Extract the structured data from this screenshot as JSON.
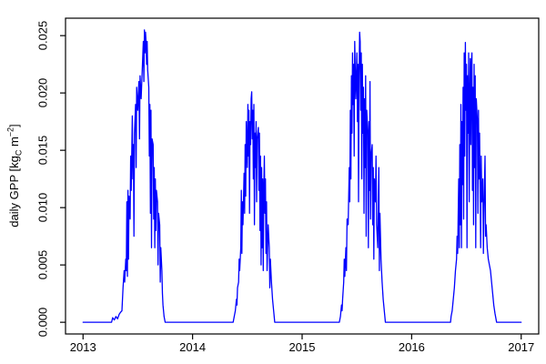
{
  "chart_data": {
    "type": "line",
    "title": "",
    "xlabel": "",
    "ylabel": "daily GPP [kgC m−2]",
    "ylabel_parts": {
      "prefix": "daily GPP [kg",
      "sub": "C",
      "mid": " m",
      "sup": "−2",
      "suffix": "]"
    },
    "x_ticks": [
      "2013",
      "2014",
      "2015",
      "2016",
      "2017"
    ],
    "x_tick_values": [
      2013,
      2014,
      2015,
      2016,
      2017
    ],
    "y_ticks": [
      "0.000",
      "0.005",
      "0.010",
      "0.015",
      "0.020",
      "0.025"
    ],
    "y_tick_values": [
      0.0,
      0.005,
      0.01,
      0.015,
      0.02,
      0.025
    ],
    "xlim": [
      2012.84,
      2017.16
    ],
    "ylim": [
      -0.00102,
      0.02652
    ],
    "grid": false,
    "legend": "none",
    "background": "#ffffff",
    "axis_color": "#000000",
    "line_color": "#0000ff",
    "series": [
      {
        "name": "daily GPP",
        "points": [
          [
            2013.0,
            0
          ],
          [
            2013.26,
            0
          ],
          [
            2013.27,
            0.0004
          ],
          [
            2013.285,
            0.0002
          ],
          [
            2013.3,
            0.0005
          ],
          [
            2013.315,
            0.0003
          ],
          [
            2013.33,
            0.0007
          ],
          [
            2013.345,
            0.0009
          ],
          [
            2013.355,
            0.001
          ],
          [
            2013.365,
            0.003
          ],
          [
            2013.375,
            0.0045
          ],
          [
            2013.38,
            0.0035
          ],
          [
            2013.39,
            0.0055
          ],
          [
            2013.395,
            0.0045
          ],
          [
            2013.4,
            0.0105
          ],
          [
            2013.405,
            0.004
          ],
          [
            2013.41,
            0.0115
          ],
          [
            2013.415,
            0.0055
          ],
          [
            2013.42,
            0.011
          ],
          [
            2013.43,
            0.009
          ],
          [
            2013.435,
            0.0145
          ],
          [
            2013.44,
            0.0115
          ],
          [
            2013.45,
            0.018
          ],
          [
            2013.455,
            0.0125
          ],
          [
            2013.46,
            0.0155
          ],
          [
            2013.465,
            0.0075
          ],
          [
            2013.47,
            0.0165
          ],
          [
            2013.48,
            0.019
          ],
          [
            2013.485,
            0.0135
          ],
          [
            2013.49,
            0.0205
          ],
          [
            2013.5,
            0.0185
          ],
          [
            2013.51,
            0.021
          ],
          [
            2013.515,
            0.016
          ],
          [
            2013.52,
            0.0215
          ],
          [
            2013.53,
            0.0195
          ],
          [
            2013.54,
            0.022
          ],
          [
            2013.55,
            0.0245
          ],
          [
            2013.555,
            0.021
          ],
          [
            2013.56,
            0.0255
          ],
          [
            2013.565,
            0.0235
          ],
          [
            2013.57,
            0.0253
          ],
          [
            2013.575,
            0.0245
          ],
          [
            2013.58,
            0.0225
          ],
          [
            2013.585,
            0.0245
          ],
          [
            2013.59,
            0.022
          ],
          [
            2013.6,
            0.0205
          ],
          [
            2013.605,
            0.0145
          ],
          [
            2013.61,
            0.019
          ],
          [
            2013.615,
            0.0095
          ],
          [
            2013.62,
            0.0185
          ],
          [
            2013.625,
            0.0065
          ],
          [
            2013.63,
            0.016
          ],
          [
            2013.64,
            0.0155
          ],
          [
            2013.645,
            0.009
          ],
          [
            2013.65,
            0.0135
          ],
          [
            2013.655,
            0.0065
          ],
          [
            2013.66,
            0.0125
          ],
          [
            2013.665,
            0.008
          ],
          [
            2013.67,
            0.0115
          ],
          [
            2013.68,
            0.0105
          ],
          [
            2013.685,
            0.005
          ],
          [
            2013.69,
            0.0095
          ],
          [
            2013.7,
            0.0085
          ],
          [
            2013.705,
            0.0035
          ],
          [
            2013.71,
            0.0065
          ],
          [
            2013.72,
            0.0045
          ],
          [
            2013.725,
            0.0025
          ],
          [
            2013.73,
            0.0015
          ],
          [
            2013.74,
            0.0005
          ],
          [
            2013.75,
            0
          ],
          [
            2014.37,
            0
          ],
          [
            2014.38,
            0.0005
          ],
          [
            2014.39,
            0.001
          ],
          [
            2014.4,
            0.002
          ],
          [
            2014.405,
            0.0015
          ],
          [
            2014.41,
            0.003
          ],
          [
            2014.42,
            0.0035
          ],
          [
            2014.425,
            0.0055
          ],
          [
            2014.43,
            0.0045
          ],
          [
            2014.44,
            0.0065
          ],
          [
            2014.445,
            0.0115
          ],
          [
            2014.45,
            0.006
          ],
          [
            2014.455,
            0.0105
          ],
          [
            2014.46,
            0.0085
          ],
          [
            2014.47,
            0.013
          ],
          [
            2014.475,
            0.0095
          ],
          [
            2014.48,
            0.0155
          ],
          [
            2014.485,
            0.011
          ],
          [
            2014.49,
            0.0175
          ],
          [
            2014.5,
            0.0135
          ],
          [
            2014.505,
            0.019
          ],
          [
            2014.51,
            0.0145
          ],
          [
            2014.515,
            0.0185
          ],
          [
            2014.52,
            0.0095
          ],
          [
            2014.525,
            0.0175
          ],
          [
            2014.53,
            0.0155
          ],
          [
            2014.535,
            0.0195
          ],
          [
            2014.54,
            0.0201
          ],
          [
            2014.545,
            0.016
          ],
          [
            2014.55,
            0.0185
          ],
          [
            2014.555,
            0.0125
          ],
          [
            2014.56,
            0.019
          ],
          [
            2014.565,
            0.0085
          ],
          [
            2014.57,
            0.0165
          ],
          [
            2014.575,
            0.0135
          ],
          [
            2014.58,
            0.0175
          ],
          [
            2014.585,
            0.0105
          ],
          [
            2014.59,
            0.016
          ],
          [
            2014.6,
            0.017
          ],
          [
            2014.605,
            0.0115
          ],
          [
            2014.61,
            0.0165
          ],
          [
            2014.615,
            0.008
          ],
          [
            2014.62,
            0.0145
          ],
          [
            2014.625,
            0.005
          ],
          [
            2014.63,
            0.0135
          ],
          [
            2014.635,
            0.0065
          ],
          [
            2014.64,
            0.0125
          ],
          [
            2014.645,
            0.0045
          ],
          [
            2014.65,
            0.0115
          ],
          [
            2014.655,
            0.0145
          ],
          [
            2014.66,
            0.0095
          ],
          [
            2014.665,
            0.0125
          ],
          [
            2014.67,
            0.006
          ],
          [
            2014.675,
            0.0105
          ],
          [
            2014.68,
            0.0045
          ],
          [
            2014.69,
            0.0085
          ],
          [
            2014.7,
            0.0065
          ],
          [
            2014.705,
            0.003
          ],
          [
            2014.71,
            0.0055
          ],
          [
            2014.72,
            0.0035
          ],
          [
            2014.73,
            0.002
          ],
          [
            2014.74,
            0.001
          ],
          [
            2014.75,
            0
          ],
          [
            2015.34,
            0
          ],
          [
            2015.35,
            0.0005
          ],
          [
            2015.36,
            0.0015
          ],
          [
            2015.365,
            0.001
          ],
          [
            2015.37,
            0.002
          ],
          [
            2015.38,
            0.0035
          ],
          [
            2015.385,
            0.0055
          ],
          [
            2015.39,
            0.004
          ],
          [
            2015.4,
            0.0065
          ],
          [
            2015.405,
            0.0045
          ],
          [
            2015.41,
            0.009
          ],
          [
            2015.42,
            0.0085
          ],
          [
            2015.43,
            0.0135
          ],
          [
            2015.435,
            0.0105
          ],
          [
            2015.44,
            0.0185
          ],
          [
            2015.445,
            0.0125
          ],
          [
            2015.45,
            0.0215
          ],
          [
            2015.455,
            0.0165
          ],
          [
            2015.46,
            0.0235
          ],
          [
            2015.465,
            0.019
          ],
          [
            2015.47,
            0.0225
          ],
          [
            2015.475,
            0.0145
          ],
          [
            2015.48,
            0.0245
          ],
          [
            2015.49,
            0.0195
          ],
          [
            2015.5,
            0.0235
          ],
          [
            2015.505,
            0.0175
          ],
          [
            2015.51,
            0.0225
          ],
          [
            2015.515,
            0.0105
          ],
          [
            2015.52,
            0.0215
          ],
          [
            2015.525,
            0.0253
          ],
          [
            2015.53,
            0.0245
          ],
          [
            2015.535,
            0.0185
          ],
          [
            2015.54,
            0.0235
          ],
          [
            2015.545,
            0.0125
          ],
          [
            2015.55,
            0.0225
          ],
          [
            2015.555,
            0.0165
          ],
          [
            2015.56,
            0.0205
          ],
          [
            2015.565,
            0.0095
          ],
          [
            2015.57,
            0.0195
          ],
          [
            2015.575,
            0.0135
          ],
          [
            2015.58,
            0.0215
          ],
          [
            2015.585,
            0.0075
          ],
          [
            2015.59,
            0.0185
          ],
          [
            2015.6,
            0.0165
          ],
          [
            2015.605,
            0.0065
          ],
          [
            2015.61,
            0.0175
          ],
          [
            2015.615,
            0.0115
          ],
          [
            2015.62,
            0.021
          ],
          [
            2015.625,
            0.009
          ],
          [
            2015.63,
            0.0145
          ],
          [
            2015.64,
            0.0155
          ],
          [
            2015.645,
            0.0085
          ],
          [
            2015.65,
            0.0135
          ],
          [
            2015.655,
            0.0055
          ],
          [
            2015.66,
            0.0125
          ],
          [
            2015.67,
            0.0105
          ],
          [
            2015.675,
            0.0145
          ],
          [
            2015.68,
            0.0085
          ],
          [
            2015.69,
            0.0065
          ],
          [
            2015.7,
            0.0135
          ],
          [
            2015.705,
            0.0045
          ],
          [
            2015.71,
            0.0095
          ],
          [
            2015.72,
            0.0055
          ],
          [
            2015.73,
            0.0035
          ],
          [
            2015.74,
            0.002
          ],
          [
            2015.75,
            0.001
          ],
          [
            2015.76,
            0
          ],
          [
            2016.355,
            0
          ],
          [
            2016.36,
            0.0005
          ],
          [
            2016.37,
            0.001
          ],
          [
            2016.38,
            0.002
          ],
          [
            2016.39,
            0.003
          ],
          [
            2016.4,
            0.0045
          ],
          [
            2016.41,
            0.0055
          ],
          [
            2016.415,
            0.0075
          ],
          [
            2016.42,
            0.006
          ],
          [
            2016.43,
            0.0125
          ],
          [
            2016.435,
            0.0065
          ],
          [
            2016.44,
            0.0155
          ],
          [
            2016.445,
            0.0085
          ],
          [
            2016.45,
            0.019
          ],
          [
            2016.455,
            0.0065
          ],
          [
            2016.46,
            0.0175
          ],
          [
            2016.465,
            0.012
          ],
          [
            2016.47,
            0.0205
          ],
          [
            2016.475,
            0.009
          ],
          [
            2016.48,
            0.0235
          ],
          [
            2016.485,
            0.0145
          ],
          [
            2016.49,
            0.0244
          ],
          [
            2016.495,
            0.0185
          ],
          [
            2016.5,
            0.0225
          ],
          [
            2016.505,
            0.0065
          ],
          [
            2016.51,
            0.0215
          ],
          [
            2016.515,
            0.0165
          ],
          [
            2016.52,
            0.0235
          ],
          [
            2016.525,
            0.0105
          ],
          [
            2016.53,
            0.0195
          ],
          [
            2016.535,
            0.023
          ],
          [
            2016.54,
            0.0155
          ],
          [
            2016.545,
            0.0225
          ],
          [
            2016.55,
            0.0235
          ],
          [
            2016.555,
            0.0115
          ],
          [
            2016.56,
            0.0205
          ],
          [
            2016.565,
            0.0085
          ],
          [
            2016.57,
            0.0225
          ],
          [
            2016.575,
            0.0135
          ],
          [
            2016.58,
            0.0215
          ],
          [
            2016.585,
            0.0065
          ],
          [
            2016.59,
            0.0195
          ],
          [
            2016.6,
            0.0175
          ],
          [
            2016.605,
            0.0095
          ],
          [
            2016.61,
            0.0185
          ],
          [
            2016.615,
            0.0125
          ],
          [
            2016.62,
            0.0165
          ],
          [
            2016.63,
            0.0065
          ],
          [
            2016.635,
            0.0145
          ],
          [
            2016.64,
            0.0105
          ],
          [
            2016.65,
            0.0125
          ],
          [
            2016.655,
            0.006
          ],
          [
            2016.66,
            0.0095
          ],
          [
            2016.67,
            0.0145
          ],
          [
            2016.675,
            0.0075
          ],
          [
            2016.68,
            0.0085
          ],
          [
            2016.69,
            0.0065
          ],
          [
            2016.7,
            0.0055
          ],
          [
            2016.71,
            0.005
          ],
          [
            2016.72,
            0.0045
          ],
          [
            2016.73,
            0.0035
          ],
          [
            2016.74,
            0.0025
          ],
          [
            2016.75,
            0.0015
          ],
          [
            2016.76,
            0.0008
          ],
          [
            2016.775,
            0
          ],
          [
            2017.0,
            0
          ]
        ]
      }
    ]
  }
}
